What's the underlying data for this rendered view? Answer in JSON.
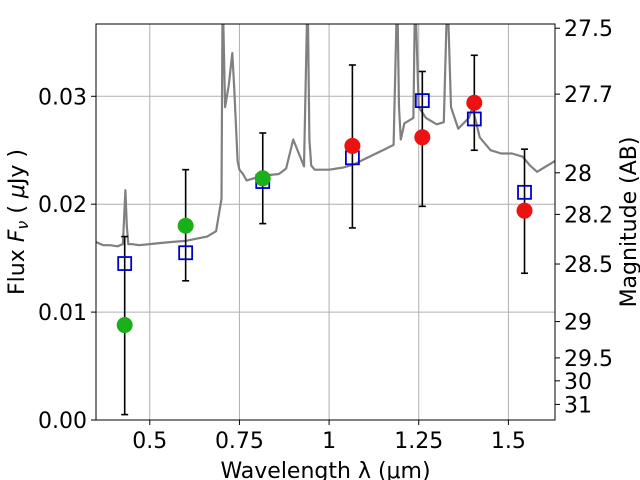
{
  "chart_data": {
    "type": "scatter",
    "title": "",
    "xlabel": "Wavelength  λ (μm)",
    "ylabel_parts": [
      "Flux  ",
      "F",
      "ν",
      "  ( ",
      "μ",
      "Jy )"
    ],
    "ylabel_right": "Magnitude (AB)",
    "xlim": [
      0.35,
      1.63
    ],
    "ylim": [
      0.0,
      0.0367
    ],
    "grid": true,
    "x_ticks": [
      {
        "value": 0.5,
        "label": "0.5"
      },
      {
        "value": 0.75,
        "label": "0.75"
      },
      {
        "value": 1.0,
        "label": "1"
      },
      {
        "value": 1.25,
        "label": "1.25"
      },
      {
        "value": 1.5,
        "label": "1.5"
      }
    ],
    "y_ticks": [
      {
        "value": 0.0,
        "label": "0.00"
      },
      {
        "value": 0.01,
        "label": "0.01"
      },
      {
        "value": 0.02,
        "label": "0.02"
      },
      {
        "value": 0.03,
        "label": "0.03"
      }
    ],
    "right_ticks": [
      {
        "mag": 27.5,
        "label": "27.5"
      },
      {
        "mag": 27.7,
        "label": "27.7"
      },
      {
        "mag": 28.0,
        "label": "28"
      },
      {
        "mag": 28.2,
        "label": "28.2"
      },
      {
        "mag": 28.5,
        "label": "28.5"
      },
      {
        "mag": 29.0,
        "label": "29"
      },
      {
        "mag": 29.5,
        "label": "29.5"
      },
      {
        "mag": 30.0,
        "label": "30"
      },
      {
        "mag": 31.0,
        "label": "31"
      }
    ],
    "colors": {
      "spectrum": "#808080",
      "model": "#0000cc",
      "green": "#1ab01a",
      "red": "#ee1111",
      "errorbar": "#000000",
      "grid": "#b0b0b0"
    },
    "spectrum": {
      "x": [
        0.35,
        0.37,
        0.39,
        0.41,
        0.425,
        0.432,
        0.436,
        0.44,
        0.45,
        0.47,
        0.5,
        0.53,
        0.56,
        0.6,
        0.63,
        0.66,
        0.685,
        0.7,
        0.703,
        0.71,
        0.72,
        0.73,
        0.735,
        0.745,
        0.75,
        0.76,
        0.77,
        0.8,
        0.83,
        0.86,
        0.88,
        0.9,
        0.93,
        0.94,
        0.945,
        0.95,
        0.96,
        1.0,
        1.04,
        1.07,
        1.1,
        1.15,
        1.18,
        1.19,
        1.195,
        1.2,
        1.21,
        1.235,
        1.24,
        1.25,
        1.27,
        1.3,
        1.32,
        1.33,
        1.34,
        1.36,
        1.39,
        1.4,
        1.42,
        1.45,
        1.48,
        1.51,
        1.54,
        1.56,
        1.58,
        1.6,
        1.62,
        1.63
      ],
      "y": [
        0.0165,
        0.0162,
        0.0162,
        0.0161,
        0.0163,
        0.0213,
        0.018,
        0.0163,
        0.0163,
        0.0162,
        0.0163,
        0.0164,
        0.0165,
        0.0166,
        0.0168,
        0.017,
        0.0175,
        0.0205,
        0.04,
        0.029,
        0.031,
        0.034,
        0.031,
        0.024,
        0.0232,
        0.0228,
        0.0222,
        0.0225,
        0.0227,
        0.0228,
        0.0233,
        0.026,
        0.0235,
        0.04,
        0.026,
        0.0236,
        0.0232,
        0.0232,
        0.0234,
        0.0237,
        0.0242,
        0.025,
        0.0255,
        0.04,
        0.029,
        0.026,
        0.0275,
        0.028,
        0.04,
        0.029,
        0.028,
        0.0274,
        0.0276,
        0.04,
        0.029,
        0.027,
        0.028,
        0.029,
        0.0262,
        0.025,
        0.0247,
        0.0247,
        0.0244,
        0.0236,
        0.023,
        0.0234,
        0.0238,
        0.024
      ]
    },
    "series": [
      {
        "marker": "square-open",
        "color_key": "model",
        "points": [
          {
            "x": 0.43,
            "y": 0.0145
          },
          {
            "x": 0.6,
            "y": 0.0155
          },
          {
            "x": 0.815,
            "y": 0.0221
          },
          {
            "x": 1.065,
            "y": 0.0243
          },
          {
            "x": 1.26,
            "y": 0.0296
          },
          {
            "x": 1.405,
            "y": 0.0279
          },
          {
            "x": 1.545,
            "y": 0.0211
          }
        ]
      },
      {
        "marker": "circle",
        "color_key": "green",
        "points": [
          {
            "x": 0.43,
            "y": 0.0088,
            "ylo": 0.0005,
            "yhi": 0.017
          },
          {
            "x": 0.6,
            "y": 0.018,
            "ylo": 0.0129,
            "yhi": 0.0232
          },
          {
            "x": 0.815,
            "y": 0.0224,
            "ylo": 0.0182,
            "yhi": 0.0266
          }
        ]
      },
      {
        "marker": "circle",
        "color_key": "red",
        "points": [
          {
            "x": 1.065,
            "y": 0.0254,
            "ylo": 0.0178,
            "yhi": 0.0329
          },
          {
            "x": 1.26,
            "y": 0.0262,
            "ylo": 0.0198,
            "yhi": 0.0323
          },
          {
            "x": 1.405,
            "y": 0.0294,
            "ylo": 0.025,
            "yhi": 0.0338
          },
          {
            "x": 1.545,
            "y": 0.0194,
            "ylo": 0.0136,
            "yhi": 0.0251
          }
        ]
      }
    ]
  }
}
